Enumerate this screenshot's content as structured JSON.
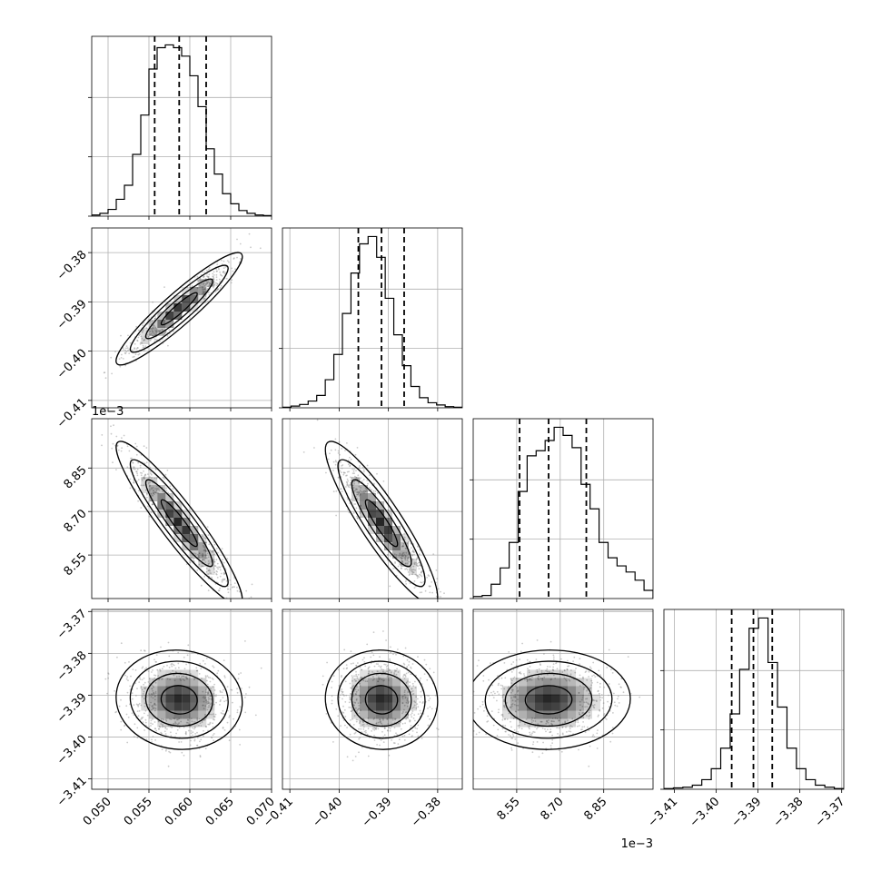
{
  "chart_data": {
    "type": "corner",
    "parameters": [
      {
        "range": [
          0.048,
          0.07
        ],
        "ticks": [
          "0.050",
          "0.055",
          "0.060",
          "0.065",
          "0.070"
        ],
        "tick_values": [
          0.05,
          0.055,
          0.06,
          0.065,
          0.07
        ],
        "offset_label": "",
        "quantiles": [
          0.0557,
          0.0587,
          0.062
        ]
      },
      {
        "range": [
          -0.4115,
          -0.375
        ],
        "ticks": [
          "−0.41",
          "−0.40",
          "−0.39",
          "−0.38"
        ],
        "tick_values": [
          -0.41,
          -0.4,
          -0.39,
          -0.38
        ],
        "offset_label": "",
        "quantiles": [
          -0.3961,
          -0.3914,
          -0.3868
        ]
      },
      {
        "range": [
          8.4,
          9.02
        ],
        "ticks": [
          "8.55",
          "8.70",
          "8.85"
        ],
        "tick_values": [
          8.55,
          8.7,
          8.85
        ],
        "offset_label": "1e−3",
        "quantiles": [
          8.56,
          8.66,
          8.79
        ]
      },
      {
        "range": [
          -3.4125,
          -3.3695
        ],
        "ticks": [
          "−3.41",
          "−3.40",
          "−3.39",
          "−3.38",
          "−3.37"
        ],
        "tick_values": [
          -3.41,
          -3.4,
          -3.39,
          -3.38,
          -3.37
        ],
        "offset_label": "",
        "quantiles": [
          -3.3963,
          -3.3911,
          -3.3866
        ]
      }
    ],
    "histograms": [
      {
        "param": 0,
        "counts": [
          2,
          5,
          12,
          30,
          55,
          110,
          180,
          262,
          300,
          305,
          300,
          285,
          250,
          195,
          120,
          75,
          40,
          22,
          10,
          5,
          2,
          1
        ]
      },
      {
        "param": 1,
        "counts": [
          1,
          3,
          6,
          12,
          22,
          50,
          95,
          168,
          240,
          292,
          305,
          268,
          195,
          130,
          75,
          38,
          18,
          9,
          5,
          2,
          1
        ]
      },
      {
        "param": 2,
        "counts": [
          2,
          3,
          14,
          30,
          55,
          105,
          140,
          145,
          155,
          168,
          160,
          148,
          112,
          88,
          55,
          40,
          32,
          26,
          18,
          8
        ]
      },
      {
        "param": 3,
        "counts": [
          1,
          2,
          3,
          6,
          14,
          30,
          60,
          110,
          175,
          235,
          250,
          185,
          120,
          60,
          30,
          14,
          6,
          3,
          1
        ]
      }
    ],
    "correlations": [
      {
        "row": 1,
        "col": 0,
        "rho": 0.93
      },
      {
        "row": 2,
        "col": 0,
        "rho": -0.93
      },
      {
        "row": 2,
        "col": 1,
        "rho": -0.9
      },
      {
        "row": 3,
        "col": 0,
        "rho": -0.05
      },
      {
        "row": 3,
        "col": 1,
        "rho": -0.03
      },
      {
        "row": 3,
        "col": 2,
        "rho": 0.02
      }
    ],
    "grid": true,
    "quantile_lines": "dashed",
    "colors": {
      "line": "#000000",
      "scatter": "#8a8a8a",
      "grid": "#b0b0b0",
      "density": "#000000"
    }
  }
}
